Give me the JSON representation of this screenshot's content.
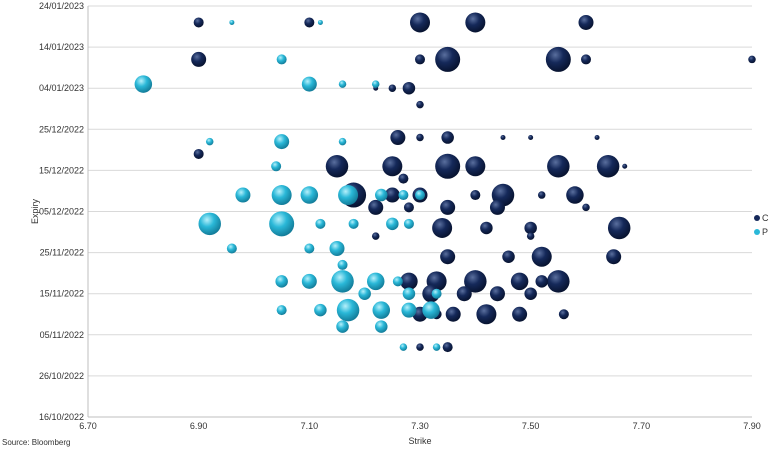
{
  "chart_data": {
    "type": "scatter",
    "subtype": "bubble",
    "xlabel": "Strike",
    "ylabel": "Expiry",
    "xlim": [
      6.7,
      7.9
    ],
    "ylim": [
      "2022-10-16",
      "2023-01-24"
    ],
    "x_ticks": [
      "6.70",
      "6.90",
      "7.10",
      "7.30",
      "7.50",
      "7.70",
      "7.90"
    ],
    "y_ticks": [
      "24/01/2023",
      "14/01/2023",
      "04/01/2023",
      "25/12/2022",
      "15/12/2022",
      "05/12/2022",
      "25/11/2022",
      "15/11/2022",
      "05/11/2022",
      "26/10/2022",
      "16/10/2022"
    ],
    "grid": "horizontal",
    "legend": "right",
    "colors": {
      "C": "#15295a",
      "P": "#2ab8d8"
    },
    "series": [
      {
        "name": "C",
        "points": [
          [
            "2023-01-20",
            6.9,
            2
          ],
          [
            "2023-01-20",
            7.1,
            2
          ],
          [
            "2023-01-20",
            7.3,
            4
          ],
          [
            "2023-01-20",
            7.4,
            4
          ],
          [
            "2023-01-20",
            7.6,
            3
          ],
          [
            "2023-01-11",
            6.9,
            3
          ],
          [
            "2023-01-11",
            7.3,
            2
          ],
          [
            "2023-01-11",
            7.35,
            5
          ],
          [
            "2023-01-11",
            7.55,
            5
          ],
          [
            "2023-01-11",
            7.6,
            2
          ],
          [
            "2023-01-11",
            7.9,
            1.5
          ],
          [
            "2023-01-04",
            7.22,
            1
          ],
          [
            "2023-01-04",
            7.25,
            1.5
          ],
          [
            "2023-01-04",
            7.28,
            2.5
          ],
          [
            "2022-12-31",
            7.3,
            1.5
          ],
          [
            "2022-12-23",
            7.26,
            3
          ],
          [
            "2022-12-23",
            7.3,
            1.5
          ],
          [
            "2022-12-23",
            7.35,
            2.5
          ],
          [
            "2022-12-23",
            7.45,
            1
          ],
          [
            "2022-12-23",
            7.5,
            1
          ],
          [
            "2022-12-23",
            7.62,
            1
          ],
          [
            "2022-12-19",
            6.9,
            2
          ],
          [
            "2022-12-16",
            7.15,
            4.5
          ],
          [
            "2022-12-16",
            7.25,
            4
          ],
          [
            "2022-12-16",
            7.35,
            5
          ],
          [
            "2022-12-16",
            7.4,
            4
          ],
          [
            "2022-12-16",
            7.55,
            4.5
          ],
          [
            "2022-12-16",
            7.64,
            4.5
          ],
          [
            "2022-12-16",
            7.67,
            1
          ],
          [
            "2022-12-13",
            7.27,
            2
          ],
          [
            "2022-12-09",
            7.18,
            5
          ],
          [
            "2022-12-09",
            7.25,
            3
          ],
          [
            "2022-12-09",
            7.3,
            3
          ],
          [
            "2022-12-09",
            7.45,
            4.5
          ],
          [
            "2022-12-09",
            7.58,
            3.5
          ],
          [
            "2022-12-09",
            7.4,
            2
          ],
          [
            "2022-12-09",
            7.52,
            1.5
          ],
          [
            "2022-12-06",
            7.22,
            3
          ],
          [
            "2022-12-06",
            7.28,
            2
          ],
          [
            "2022-12-06",
            7.35,
            3
          ],
          [
            "2022-12-06",
            7.44,
            3
          ],
          [
            "2022-12-06",
            7.6,
            1.5
          ],
          [
            "2022-12-01",
            7.34,
            4
          ],
          [
            "2022-12-01",
            7.42,
            2.5
          ],
          [
            "2022-12-01",
            7.5,
            2.5
          ],
          [
            "2022-12-01",
            7.66,
            4.5
          ],
          [
            "2022-11-29",
            7.22,
            1.5
          ],
          [
            "2022-11-29",
            7.5,
            1.5
          ],
          [
            "2022-11-24",
            7.35,
            3
          ],
          [
            "2022-11-24",
            7.46,
            2.5
          ],
          [
            "2022-11-24",
            7.52,
            4
          ],
          [
            "2022-11-24",
            7.65,
            3
          ],
          [
            "2022-11-18",
            7.28,
            3.5
          ],
          [
            "2022-11-18",
            7.33,
            4
          ],
          [
            "2022-11-18",
            7.4,
            4.5
          ],
          [
            "2022-11-18",
            7.48,
            3.5
          ],
          [
            "2022-11-18",
            7.55,
            4.5
          ],
          [
            "2022-11-18",
            7.52,
            2.5
          ],
          [
            "2022-11-15",
            7.32,
            3.5
          ],
          [
            "2022-11-15",
            7.38,
            3
          ],
          [
            "2022-11-15",
            7.44,
            3
          ],
          [
            "2022-11-15",
            7.5,
            2.5
          ],
          [
            "2022-11-10",
            7.3,
            3
          ],
          [
            "2022-11-10",
            7.36,
            3
          ],
          [
            "2022-11-10",
            7.42,
            4
          ],
          [
            "2022-11-10",
            7.48,
            3
          ],
          [
            "2022-11-10",
            7.56,
            2
          ],
          [
            "2022-11-10",
            7.33,
            2
          ],
          [
            "2022-11-02",
            7.3,
            1.5
          ],
          [
            "2022-11-02",
            7.35,
            2
          ]
        ]
      },
      {
        "name": "P",
        "points": [
          [
            "2023-01-20",
            6.96,
            1
          ],
          [
            "2023-01-20",
            7.12,
            1
          ],
          [
            "2023-01-11",
            7.05,
            2
          ],
          [
            "2023-01-05",
            6.8,
            3.5
          ],
          [
            "2023-01-05",
            7.1,
            3
          ],
          [
            "2023-01-05",
            7.16,
            1.5
          ],
          [
            "2023-01-05",
            7.22,
            1.5
          ],
          [
            "2022-12-22",
            6.92,
            1.5
          ],
          [
            "2022-12-22",
            7.05,
            3
          ],
          [
            "2022-12-22",
            7.16,
            1.5
          ],
          [
            "2022-12-16",
            7.04,
            2
          ],
          [
            "2022-12-09",
            6.98,
            3
          ],
          [
            "2022-12-09",
            7.05,
            4
          ],
          [
            "2022-12-09",
            7.1,
            3.5
          ],
          [
            "2022-12-09",
            7.17,
            4
          ],
          [
            "2022-12-09",
            7.23,
            2.5
          ],
          [
            "2022-12-09",
            7.27,
            2
          ],
          [
            "2022-12-09",
            7.3,
            2
          ],
          [
            "2022-12-02",
            6.92,
            4.5
          ],
          [
            "2022-12-02",
            7.05,
            5
          ],
          [
            "2022-12-02",
            7.12,
            2
          ],
          [
            "2022-12-02",
            7.18,
            2
          ],
          [
            "2022-12-02",
            7.25,
            2.5
          ],
          [
            "2022-12-02",
            7.28,
            2
          ],
          [
            "2022-11-26",
            6.96,
            2
          ],
          [
            "2022-11-26",
            7.15,
            3
          ],
          [
            "2022-11-26",
            7.1,
            2
          ],
          [
            "2022-11-22",
            7.16,
            2
          ],
          [
            "2022-11-18",
            7.05,
            2.5
          ],
          [
            "2022-11-18",
            7.1,
            3
          ],
          [
            "2022-11-18",
            7.16,
            4.5
          ],
          [
            "2022-11-18",
            7.22,
            3.5
          ],
          [
            "2022-11-18",
            7.26,
            2
          ],
          [
            "2022-11-15",
            7.2,
            2.5
          ],
          [
            "2022-11-15",
            7.28,
            2.5
          ],
          [
            "2022-11-15",
            7.33,
            2
          ],
          [
            "2022-11-11",
            7.05,
            2
          ],
          [
            "2022-11-11",
            7.12,
            2.5
          ],
          [
            "2022-11-11",
            7.17,
            4.5
          ],
          [
            "2022-11-11",
            7.23,
            3.5
          ],
          [
            "2022-11-11",
            7.28,
            3
          ],
          [
            "2022-11-11",
            7.32,
            3.5
          ],
          [
            "2022-11-07",
            7.16,
            2.5
          ],
          [
            "2022-11-07",
            7.23,
            2.5
          ],
          [
            "2022-11-02",
            7.27,
            1.5
          ],
          [
            "2022-11-02",
            7.33,
            1.5
          ]
        ]
      }
    ]
  },
  "source": "Source: Bloomberg"
}
